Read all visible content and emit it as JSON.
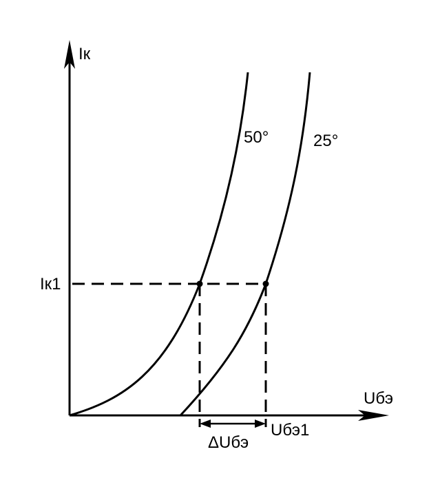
{
  "y_axis_label": "Iк",
  "x_axis_label": "Uбэ",
  "curves": [
    {
      "label": "50°"
    },
    {
      "label": "25°"
    }
  ],
  "point_y_label": "Iк1",
  "point_x_label": "Uбэ1",
  "delta_label": "ΔUбэ"
}
